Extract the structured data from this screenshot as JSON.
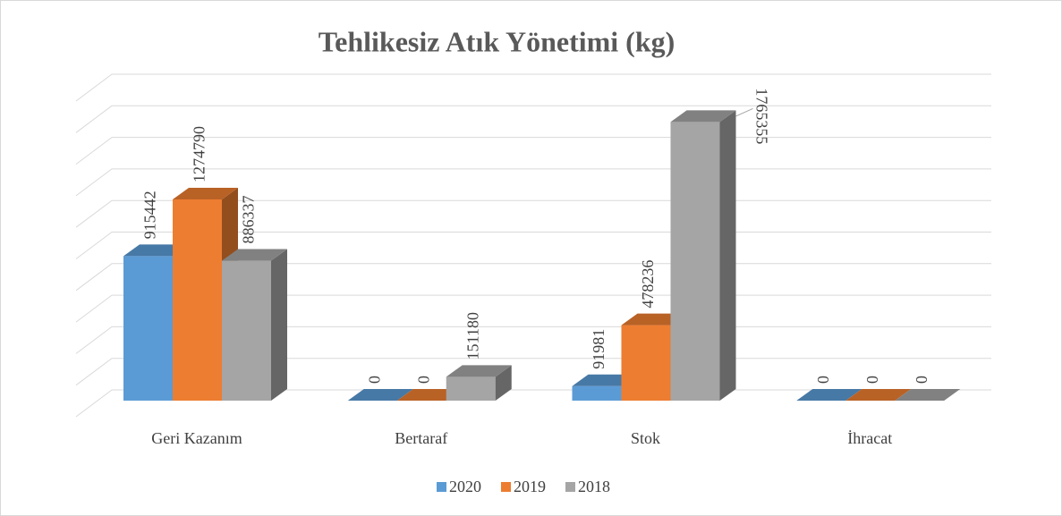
{
  "chart_data": {
    "type": "bar3d",
    "title": "Tehlikesiz Atık Yönetimi (kg)",
    "categories": [
      "Geri Kazanım",
      "Bertaraf",
      "Stok",
      "İhracat"
    ],
    "series": [
      {
        "name": "2020",
        "color": "#5b9bd5",
        "values": [
          915442,
          0,
          91981,
          0
        ]
      },
      {
        "name": "2019",
        "color": "#ed7d31",
        "values": [
          1274790,
          0,
          478236,
          0
        ]
      },
      {
        "name": "2018",
        "color": "#a5a5a5",
        "values": [
          886337,
          151180,
          1765355,
          0
        ]
      }
    ],
    "ylim": [
      0,
      2000000
    ],
    "yticks": [
      0,
      200000,
      400000,
      600000,
      800000,
      1000000,
      1200000,
      1400000,
      1600000,
      1800000,
      2000000
    ],
    "grid": true,
    "legend": "bottom"
  }
}
